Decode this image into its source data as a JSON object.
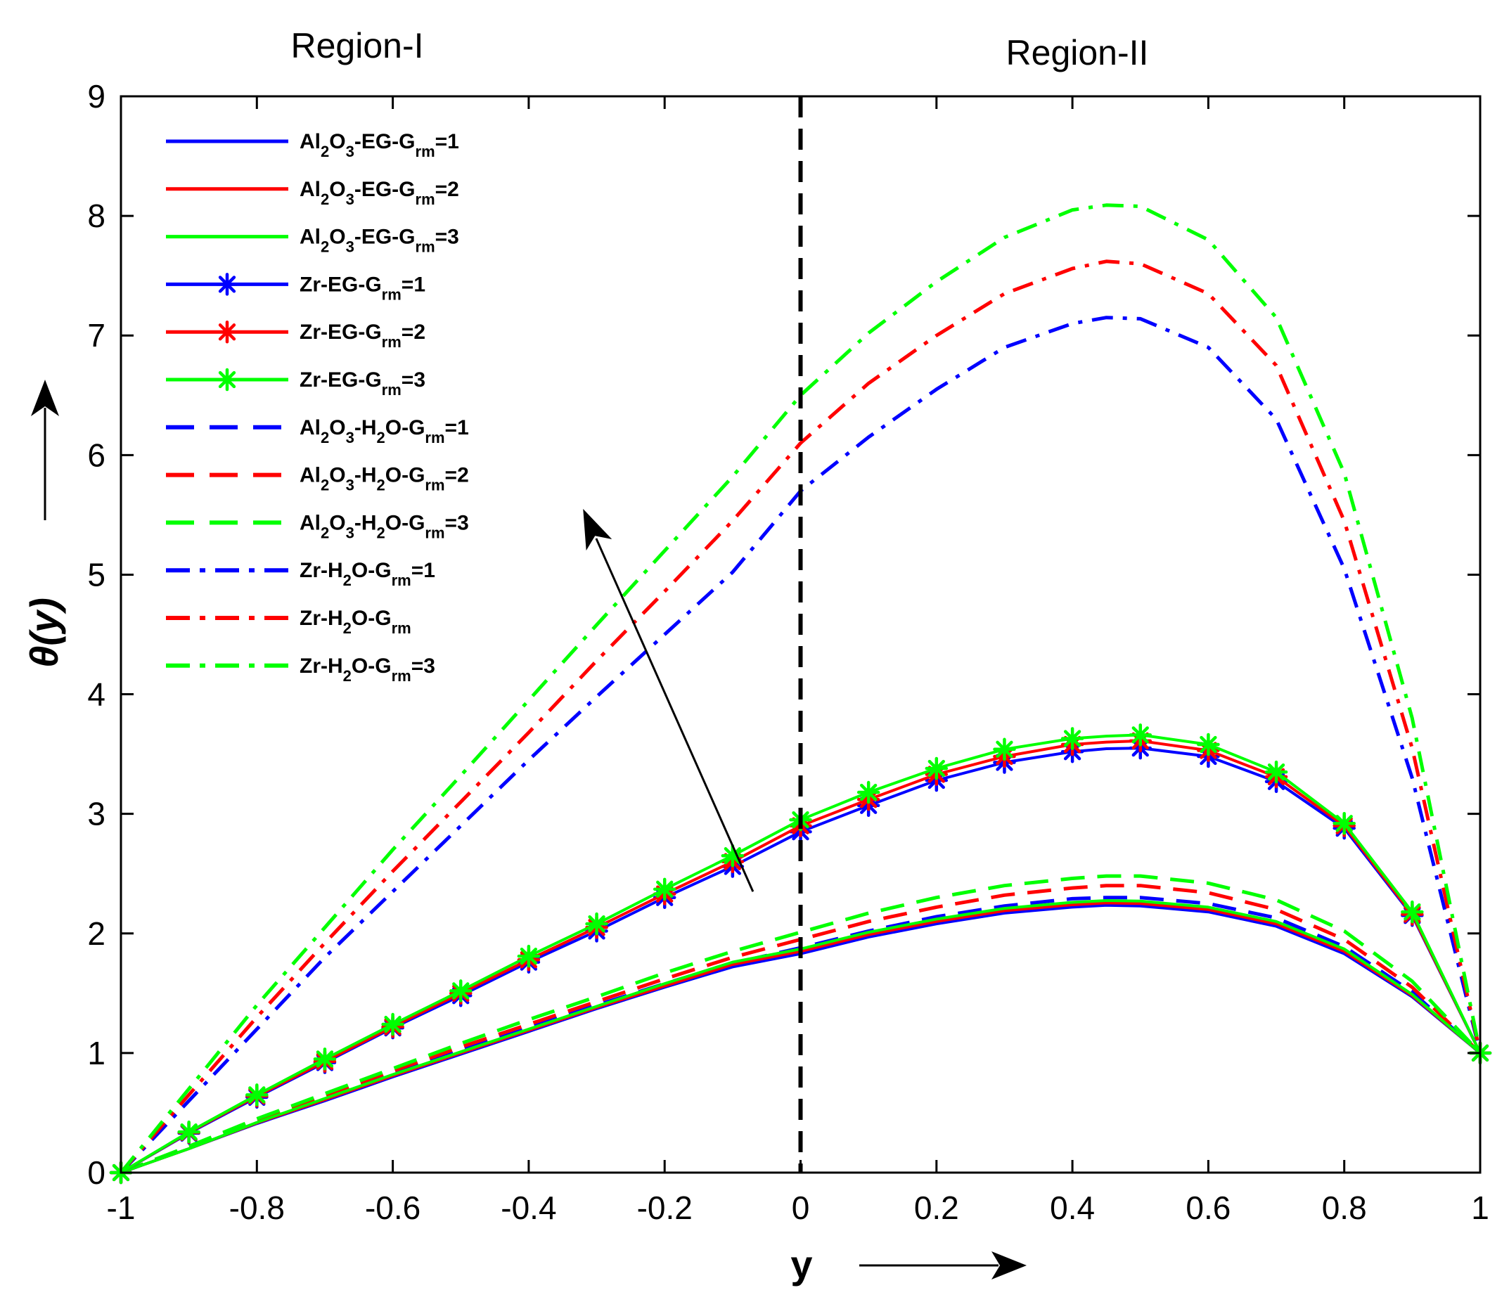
{
  "chart_data": {
    "type": "line",
    "title": "",
    "xlabel": "y",
    "ylabel": "θ(y)",
    "xlim": [
      -1,
      1
    ],
    "ylim": [
      0,
      9
    ],
    "x_ticks": [
      -1,
      -0.8,
      -0.6,
      -0.4,
      -0.2,
      0,
      0.2,
      0.4,
      0.6,
      0.8,
      1
    ],
    "x_tick_labels": [
      "-1",
      "-0.8",
      "-0.6",
      "-0.4",
      "-0.2",
      "0",
      "0.2",
      "0.4",
      "0.6",
      "0.8",
      "1"
    ],
    "y_ticks": [
      0,
      1,
      2,
      3,
      4,
      5,
      6,
      7,
      8,
      9
    ],
    "y_tick_labels": [
      "0",
      "1",
      "2",
      "3",
      "4",
      "5",
      "6",
      "7",
      "8",
      "9"
    ],
    "grid": false,
    "legend_position": "top-left",
    "annotations": {
      "region_left": "Region-I",
      "region_right": "Region-II",
      "divider_at_x": 0,
      "trend_arrow_from": [
        -0.07,
        2.35
      ],
      "trend_arrow_to": [
        -0.32,
        5.55
      ]
    },
    "x": [
      -1,
      -0.9,
      -0.8,
      -0.7,
      -0.6,
      -0.5,
      -0.4,
      -0.3,
      -0.2,
      -0.1,
      0,
      0.1,
      0.2,
      0.3,
      0.4,
      0.45,
      0.5,
      0.6,
      0.7,
      0.8,
      0.9,
      1
    ],
    "series": [
      {
        "name": "Al2O3-EG-Grm=1",
        "base": "Al",
        "sub1": "2",
        "mid": "O",
        "sub2": "3",
        "tail": "-EG-G",
        "grm": "rm",
        "suffix": "=1",
        "color": "#0000ff",
        "style": "solid",
        "marker": "none",
        "values": [
          0,
          0.2,
          0.41,
          0.6,
          0.8,
          0.99,
          1.18,
          1.37,
          1.55,
          1.72,
          1.83,
          1.97,
          2.08,
          2.17,
          2.22,
          2.235,
          2.23,
          2.18,
          2.06,
          1.83,
          1.47,
          1.0
        ]
      },
      {
        "name": "Al2O3-EG-Grm=2",
        "base": "Al",
        "sub1": "2",
        "mid": "O",
        "sub2": "3",
        "tail": "-EG-G",
        "grm": "rm",
        "suffix": "=2",
        "color": "#ff0000",
        "style": "solid",
        "marker": "none",
        "values": [
          0,
          0.2,
          0.415,
          0.61,
          0.81,
          1.0,
          1.19,
          1.38,
          1.56,
          1.74,
          1.85,
          1.99,
          2.1,
          2.19,
          2.24,
          2.255,
          2.25,
          2.2,
          2.08,
          1.85,
          1.48,
          1.0
        ]
      },
      {
        "name": "Al2O3-EG-Grm=3",
        "base": "Al",
        "sub1": "2",
        "mid": "O",
        "sub2": "3",
        "tail": "-EG-G",
        "grm": "rm",
        "suffix": "=3",
        "color": "#00ff00",
        "style": "solid",
        "marker": "none",
        "values": [
          0,
          0.2,
          0.42,
          0.62,
          0.82,
          1.01,
          1.2,
          1.39,
          1.58,
          1.76,
          1.87,
          2.01,
          2.12,
          2.21,
          2.26,
          2.275,
          2.27,
          2.22,
          2.1,
          1.87,
          1.49,
          1.0
        ]
      },
      {
        "name": "Zr-EG-Grm=1",
        "base": "Zr-EG-G",
        "grm": "rm",
        "suffix": "=1",
        "color": "#0000ff",
        "style": "solid",
        "marker": "asterisk",
        "values": [
          0,
          0.33,
          0.63,
          0.92,
          1.21,
          1.48,
          1.76,
          2.02,
          2.3,
          2.56,
          2.85,
          3.07,
          3.28,
          3.43,
          3.52,
          3.545,
          3.55,
          3.48,
          3.27,
          2.88,
          2.15,
          1.0
        ]
      },
      {
        "name": "Zr-EG-Grm=2",
        "base": "Zr-EG-G",
        "grm": "rm",
        "suffix": "=2",
        "color": "#ff0000",
        "style": "solid",
        "marker": "asterisk",
        "values": [
          0,
          0.335,
          0.64,
          0.93,
          1.22,
          1.5,
          1.78,
          2.05,
          2.33,
          2.6,
          2.9,
          3.12,
          3.33,
          3.48,
          3.58,
          3.6,
          3.61,
          3.53,
          3.31,
          2.9,
          2.16,
          1.0
        ]
      },
      {
        "name": "Zr-EG-Grm=3",
        "base": "Zr-EG-G",
        "grm": "rm",
        "suffix": "=3",
        "color": "#00ff00",
        "style": "solid",
        "marker": "asterisk",
        "values": [
          0,
          0.34,
          0.65,
          0.95,
          1.24,
          1.52,
          1.81,
          2.08,
          2.37,
          2.65,
          2.95,
          3.18,
          3.38,
          3.54,
          3.63,
          3.65,
          3.66,
          3.58,
          3.35,
          2.92,
          2.18,
          1.0
        ]
      },
      {
        "name": "Al2O3-H2O-Grm=1",
        "base": "Al",
        "sub1": "2",
        "mid": "O",
        "sub2": "3",
        "tail": "-H",
        "sub3": "2",
        "tail2": "O-G",
        "grm": "rm",
        "suffix": "=1",
        "color": "#0000ff",
        "style": "dashed",
        "marker": "none",
        "values": [
          0,
          0.21,
          0.43,
          0.63,
          0.83,
          1.02,
          1.21,
          1.4,
          1.58,
          1.75,
          1.88,
          2.02,
          2.14,
          2.23,
          2.29,
          2.3,
          2.3,
          2.25,
          2.13,
          1.89,
          1.51,
          1.0
        ]
      },
      {
        "name": "Al2O3-H2O-Grm=2",
        "base": "Al",
        "sub1": "2",
        "mid": "O",
        "sub2": "3",
        "tail": "-H",
        "sub3": "2",
        "tail2": "O-G",
        "grm": "rm",
        "suffix": "=2",
        "color": "#ff0000",
        "style": "dashed",
        "marker": "none",
        "values": [
          0,
          0.215,
          0.44,
          0.645,
          0.85,
          1.05,
          1.24,
          1.43,
          1.62,
          1.8,
          1.95,
          2.1,
          2.22,
          2.32,
          2.38,
          2.4,
          2.4,
          2.34,
          2.2,
          1.95,
          1.55,
          1.0
        ]
      },
      {
        "name": "Al2O3-H2O-Grm=3",
        "base": "Al",
        "sub1": "2",
        "mid": "O",
        "sub2": "3",
        "tail": "-H",
        "sub3": "2",
        "tail2": "O-G",
        "grm": "rm",
        "suffix": "=3",
        "color": "#00ff00",
        "style": "dashed",
        "marker": "none",
        "values": [
          0,
          0.22,
          0.45,
          0.66,
          0.87,
          1.08,
          1.28,
          1.47,
          1.67,
          1.85,
          2.01,
          2.17,
          2.3,
          2.4,
          2.46,
          2.48,
          2.48,
          2.42,
          2.28,
          2.02,
          1.6,
          1.0
        ]
      },
      {
        "name": "Zr-H2O-Grm=1",
        "base": "Zr-H",
        "sub1": "2",
        "mid": "O-G",
        "grm": "rm",
        "suffix": "=1",
        "color": "#0000ff",
        "style": "dashdot",
        "marker": "none",
        "values": [
          0,
          0.6,
          1.2,
          1.8,
          2.35,
          2.9,
          3.45,
          3.98,
          4.5,
          5.02,
          5.7,
          6.15,
          6.55,
          6.9,
          7.1,
          7.15,
          7.14,
          6.9,
          6.3,
          5.05,
          3.3,
          1.0
        ]
      },
      {
        "name": "Zr-H2O-Grm",
        "base": "Zr-H",
        "sub1": "2",
        "mid": "O-G",
        "grm": "rm",
        "suffix": "",
        "color": "#ff0000",
        "style": "dashdot",
        "marker": "none",
        "values": [
          0,
          0.65,
          1.3,
          1.92,
          2.52,
          3.1,
          3.68,
          4.28,
          4.86,
          5.45,
          6.1,
          6.6,
          7.0,
          7.35,
          7.56,
          7.62,
          7.6,
          7.35,
          6.75,
          5.45,
          3.55,
          1.0
        ]
      },
      {
        "name": "Zr-H2O-Grm=3",
        "base": "Zr-H",
        "sub1": "2",
        "mid": "O-G",
        "grm": "rm",
        "suffix": "=3",
        "color": "#00ff00",
        "style": "dashdot",
        "marker": "none",
        "values": [
          0,
          0.7,
          1.4,
          2.05,
          2.7,
          3.32,
          3.95,
          4.58,
          5.2,
          5.82,
          6.5,
          7.02,
          7.45,
          7.82,
          8.05,
          8.09,
          8.08,
          7.8,
          7.15,
          5.85,
          3.8,
          1.0
        ]
      }
    ]
  }
}
